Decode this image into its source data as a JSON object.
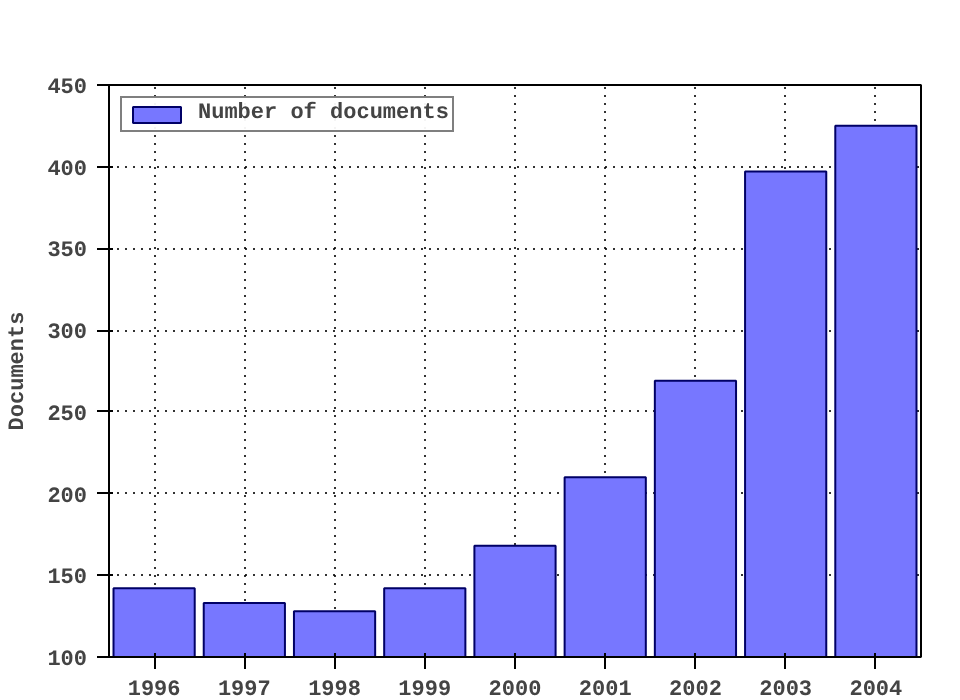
{
  "chart_data": {
    "type": "bar",
    "ylabel": "Documents",
    "x": [
      1996,
      1997,
      1998,
      1999,
      2000,
      2001,
      2002,
      2003,
      2004
    ],
    "series": [
      {
        "name": "Number of documents",
        "color": "#7777ff",
        "values": [
          142,
          133,
          128,
          142,
          168,
          210,
          269,
          397,
          425
        ]
      }
    ],
    "xlim": [
      1995.5,
      2004.5
    ],
    "xticks": [
      1996,
      1997,
      1998,
      1999,
      2000,
      2001,
      2002,
      2003,
      2004
    ],
    "ylim": [
      100,
      450
    ],
    "yticks": [
      100,
      150,
      200,
      250,
      300,
      350,
      400,
      450
    ],
    "grid": true,
    "legend": "top left"
  }
}
